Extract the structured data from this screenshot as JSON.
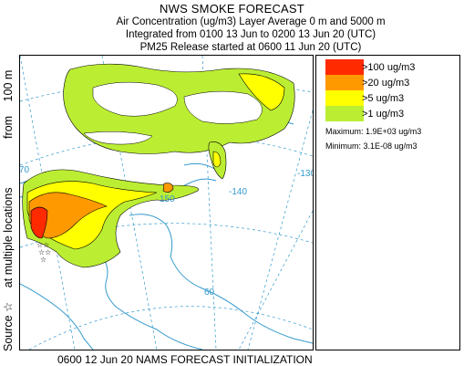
{
  "header": {
    "title": "NWS SMOKE FORECAST",
    "line1": "Air Concentration (ug/m3) Layer Average     0 m and  5000 m",
    "line2": "Integrated from 0100 13 Jun to 0200 13 Jun 20 (UTC)",
    "line3": "PM25 Release started at 0600 11 Jun 20 (UTC)"
  },
  "side_label": {
    "source": "Source",
    "source_symbol": "☆",
    "at": "at multiple locations",
    "from": "from",
    "height": "100 m"
  },
  "map": {
    "graticule_labels": [
      "-170",
      "150",
      "-140",
      "-130",
      "60"
    ]
  },
  "legend": {
    "items": [
      {
        "label": ">100 ug/m3",
        "color": "#ff2a00"
      },
      {
        "label": ">20 ug/m3",
        "color": "#ff9900"
      },
      {
        "label": ">5 ug/m3",
        "color": "#ffff00"
      },
      {
        "label": ">1 ug/m3",
        "color": "#bbee33"
      }
    ],
    "maximum": "Maximum:  1.9E+03 ug/m3",
    "minimum": "Minimum:  3.1E-08 ug/m3"
  },
  "footer": "0600 12 Jun 20 NAMS FORECAST INITIALIZATION",
  "colors": {
    "coast": "#3399cc",
    "graticule": "#3399cc",
    "contour": "#000000"
  }
}
